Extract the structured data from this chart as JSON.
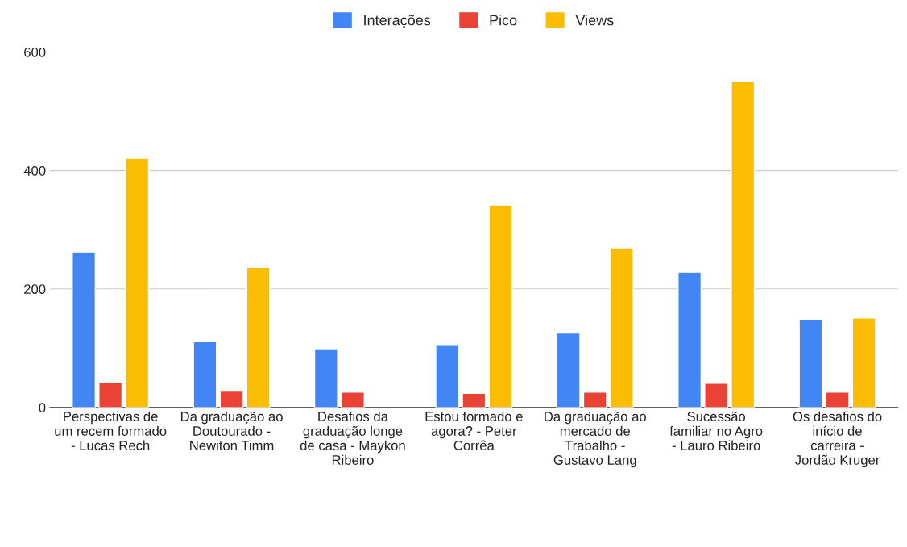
{
  "chart_data": {
    "type": "bar",
    "categories": [
      "Perspectivas de um recem formado - Lucas Rech",
      "Da graduação ao Doutourado - Newiton Timm",
      "Desafios da graduação longe de casa - Maykon Ribeiro",
      "Estou formado e agora? - Peter Corrêa",
      "Da graduação ao mercado de Trabalho - Gustavo Lang",
      "Sucessão familiar no Agro - Lauro Ribeiro",
      "Os desafios do início de carreira - Jordão Kruger"
    ],
    "series": [
      {
        "name": "Interações",
        "color": "#4285f4",
        "values": [
          262,
          111,
          99,
          106,
          127,
          228,
          149
        ]
      },
      {
        "name": "Pico",
        "color": "#ea4335",
        "values": [
          43,
          29,
          26,
          24,
          26,
          41,
          26
        ]
      },
      {
        "name": "Views",
        "color": "#fbbc04",
        "values": [
          421,
          236,
          null,
          341,
          269,
          550,
          151
        ]
      }
    ],
    "ylim": [
      0,
      600
    ],
    "yticks": [
      0,
      200,
      400,
      600
    ],
    "grid": "y",
    "legend": "top"
  }
}
